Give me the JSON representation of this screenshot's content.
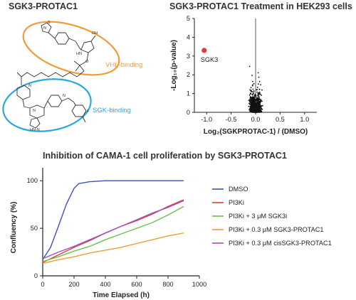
{
  "molecule_panel": {
    "title": "SGK3-PROTAC1",
    "vhl_label": "VHL-binding",
    "sgk_label": "SGK-binding",
    "vhl_color": "#f39a3a",
    "sgk_color": "#29a9df"
  },
  "chart_data": [
    {
      "type": "scatter",
      "title": "SGK3-PROTAC1 Treatment in HEK293 cells",
      "xlabel": "Log₂(SGKPROTAC-1) / (DMSO)",
      "ylabel": "-Log₁₀(p-value)",
      "xlim": [
        -1.25,
        1.25
      ],
      "ylim": [
        0,
        5
      ],
      "xticks": [
        "-1.0",
        "-0.5",
        "0.0",
        "0.5",
        "1.0"
      ],
      "yticks": [
        "0",
        "1",
        "2",
        "3",
        "4",
        "5"
      ],
      "highlight": {
        "label": "SGK3",
        "x": -1.05,
        "y": 3.3,
        "color": "#e53935"
      },
      "background_points": "dense cloud of several thousand proteins centered near x = 0, y = 0"
    },
    {
      "type": "line",
      "title": "Inhibition of CAMA-1 cell proliferation by SGK3-PROTAC1",
      "xlabel": "Time Elapsed (h)",
      "ylabel": "Confluency (%)",
      "xlim": [
        0,
        1000
      ],
      "ylim": [
        0,
        100
      ],
      "xticks": [
        "0",
        "200",
        "400",
        "600",
        "800",
        "1000"
      ],
      "yticks": [
        "0",
        "50",
        "100"
      ],
      "legend_position": "right",
      "series": [
        {
          "name": "DMSO",
          "color": "#3f51b5",
          "x": [
            0,
            50,
            100,
            150,
            200,
            230,
            300,
            400,
            500,
            600,
            700,
            800,
            900
          ],
          "y": [
            17,
            30,
            52,
            75,
            92,
            97,
            99,
            100,
            100,
            100,
            100,
            100,
            100
          ]
        },
        {
          "name": "PI3Ki",
          "color": "#e53935",
          "x": [
            0,
            100,
            200,
            300,
            400,
            500,
            600,
            700,
            800,
            900
          ],
          "y": [
            14,
            22,
            30,
            37,
            45,
            52,
            58,
            65,
            73,
            80
          ]
        },
        {
          "name": "PI3Ki + 3 μM SGK3i",
          "color": "#6cc04a",
          "x": [
            0,
            100,
            200,
            300,
            400,
            500,
            600,
            700,
            800,
            900
          ],
          "y": [
            15,
            20,
            26,
            31,
            38,
            44,
            50,
            56,
            64,
            73
          ]
        },
        {
          "name": "PI3Ki + 0.3 μM SGK3-PROTAC1",
          "color": "#f39a3a",
          "x": [
            0,
            100,
            200,
            300,
            400,
            500,
            600,
            700,
            800,
            900
          ],
          "y": [
            13,
            17,
            20,
            24,
            27,
            30,
            34,
            38,
            42,
            45
          ]
        },
        {
          "name": "PI3Ki + 0.3 μM cisSGK3-PROTAC1",
          "color": "#9c4fc2",
          "x": [
            0,
            100,
            200,
            300,
            400,
            500,
            600,
            700,
            800,
            900
          ],
          "y": [
            18,
            25,
            31,
            38,
            45,
            52,
            59,
            66,
            72,
            79
          ]
        }
      ]
    }
  ]
}
